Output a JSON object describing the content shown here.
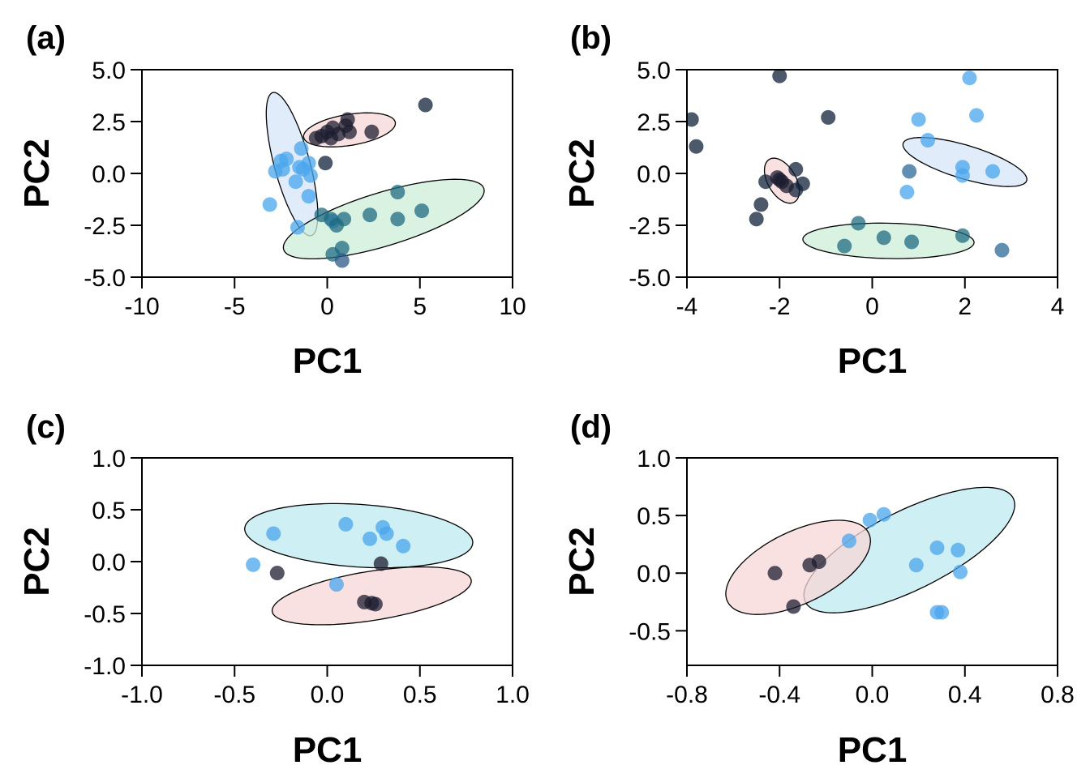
{
  "chart_data": [
    {
      "panel": "(a)",
      "type": "scatter",
      "xlabel": "PC1",
      "ylabel": "PC2",
      "xlim": [
        -10,
        10
      ],
      "ylim": [
        -5,
        5
      ],
      "xticks": [
        "-10",
        "-5",
        "0",
        "5",
        "10"
      ],
      "yticks": [
        "5.0",
        "2.5",
        "0.0",
        "-2.5",
        "-5.0"
      ],
      "ellipses": [
        {
          "cx": 1.2,
          "cy": 2.1,
          "rx": 2.5,
          "ry": 0.75,
          "angle": 8,
          "fill": "#f8d7d7"
        },
        {
          "cx": -1.9,
          "cy": 0.45,
          "rx": 3.6,
          "ry": 0.95,
          "angle": -73,
          "fill": "#d6e6f8"
        },
        {
          "cx": 3.05,
          "cy": -2.2,
          "rx": 5.6,
          "ry": 1.3,
          "angle": 15,
          "fill": "#cdeed8"
        }
      ],
      "points": [
        {
          "x": -0.6,
          "y": 1.7,
          "c": "#1c1c30"
        },
        {
          "x": -0.3,
          "y": 1.8,
          "c": "#1c1c30"
        },
        {
          "x": 0.0,
          "y": 2.0,
          "c": "#1c1c30"
        },
        {
          "x": 0.3,
          "y": 2.2,
          "c": "#1c1c30"
        },
        {
          "x": 0.6,
          "y": 1.9,
          "c": "#1c1c30"
        },
        {
          "x": 1.0,
          "y": 2.3,
          "c": "#1c1c30"
        },
        {
          "x": 1.1,
          "y": 2.6,
          "c": "#1c1c30"
        },
        {
          "x": 1.2,
          "y": 2.0,
          "c": "#1c1c30"
        },
        {
          "x": 2.4,
          "y": 2.0,
          "c": "#1c1c30"
        },
        {
          "x": 0.2,
          "y": 1.7,
          "c": "#1c1c30"
        },
        {
          "x": 5.3,
          "y": 3.3,
          "c": "#0f2238"
        },
        {
          "x": -0.1,
          "y": 0.5,
          "c": "#0f2238"
        },
        {
          "x": -2.5,
          "y": 0.6,
          "c": "#4aa6ec"
        },
        {
          "x": -2.2,
          "y": 0.7,
          "c": "#4aa6ec"
        },
        {
          "x": -1.4,
          "y": 1.2,
          "c": "#4aa6ec"
        },
        {
          "x": -1.0,
          "y": 0.5,
          "c": "#4aa6ec"
        },
        {
          "x": -2.8,
          "y": 0.1,
          "c": "#4aa6ec"
        },
        {
          "x": -2.4,
          "y": 0.2,
          "c": "#4aa6ec"
        },
        {
          "x": -1.5,
          "y": 0.3,
          "c": "#4aa6ec"
        },
        {
          "x": -1.3,
          "y": 0.2,
          "c": "#4aa6ec"
        },
        {
          "x": -0.9,
          "y": -0.1,
          "c": "#4aa6ec"
        },
        {
          "x": -1.7,
          "y": -0.4,
          "c": "#4aa6ec"
        },
        {
          "x": -1.0,
          "y": -1.1,
          "c": "#4aa6ec"
        },
        {
          "x": -3.1,
          "y": -1.5,
          "c": "#4aa6ec"
        },
        {
          "x": -1.6,
          "y": -2.6,
          "c": "#4aa6ec"
        },
        {
          "x": 0.3,
          "y": -2.3,
          "c": "#4aa6ec"
        },
        {
          "x": -0.3,
          "y": -2.0,
          "c": "#1f6b80"
        },
        {
          "x": 0.2,
          "y": -2.2,
          "c": "#1f6b80"
        },
        {
          "x": 0.5,
          "y": -2.5,
          "c": "#1f6b80"
        },
        {
          "x": 0.9,
          "y": -2.2,
          "c": "#1f6b80"
        },
        {
          "x": 2.3,
          "y": -2.0,
          "c": "#1f6b80"
        },
        {
          "x": 3.8,
          "y": -2.2,
          "c": "#1f6b80"
        },
        {
          "x": 5.1,
          "y": -1.8,
          "c": "#1f6b80"
        },
        {
          "x": 3.8,
          "y": -0.9,
          "c": "#1f6b80"
        },
        {
          "x": 0.8,
          "y": -3.6,
          "c": "#1f6b80"
        },
        {
          "x": 0.3,
          "y": -3.9,
          "c": "#1f6b80"
        },
        {
          "x": 0.8,
          "y": -4.2,
          "c": "#2c5a88"
        }
      ]
    },
    {
      "panel": "(b)",
      "type": "scatter",
      "xlabel": "PC1",
      "ylabel": "PC2",
      "xlim": [
        -4,
        4
      ],
      "ylim": [
        -5,
        5
      ],
      "xticks": [
        "-4",
        "-2",
        "0",
        "2",
        "4"
      ],
      "yticks": [
        "5.0",
        "2.5",
        "0.0",
        "-2.5",
        "-5.0"
      ],
      "ellipses": [
        {
          "cx": -1.95,
          "cy": -0.35,
          "rx": 1.1,
          "ry": 0.33,
          "angle": -80,
          "fill": "#f8d7d7"
        },
        {
          "cx": 2.0,
          "cy": 0.55,
          "rx": 1.65,
          "ry": 0.68,
          "angle": -40,
          "fill": "#d6e6f8"
        },
        {
          "cx": 0.35,
          "cy": -3.25,
          "rx": 1.85,
          "ry": 0.85,
          "angle": -3,
          "fill": "#cdeed8"
        }
      ],
      "points": [
        {
          "x": -2.0,
          "y": 4.7,
          "c": "#0f2238"
        },
        {
          "x": -3.9,
          "y": 2.6,
          "c": "#0f2238"
        },
        {
          "x": -3.8,
          "y": 1.3,
          "c": "#0f2238"
        },
        {
          "x": -0.95,
          "y": 2.7,
          "c": "#0f2238"
        },
        {
          "x": -2.3,
          "y": -0.4,
          "c": "#0f2238"
        },
        {
          "x": -2.5,
          "y": -2.2,
          "c": "#0f2238"
        },
        {
          "x": -2.4,
          "y": -1.5,
          "c": "#0f2238"
        },
        {
          "x": -1.5,
          "y": -0.5,
          "c": "#0f2238"
        },
        {
          "x": -1.65,
          "y": 0.2,
          "c": "#0f2238"
        },
        {
          "x": -1.65,
          "y": -0.8,
          "c": "#0f2238"
        },
        {
          "x": -2.05,
          "y": -0.2,
          "c": "#1c1c30"
        },
        {
          "x": -1.95,
          "y": -0.4,
          "c": "#1c1c30"
        },
        {
          "x": -1.85,
          "y": -0.6,
          "c": "#1c1c30"
        },
        {
          "x": -2.0,
          "y": -0.3,
          "c": "#1c1c30"
        },
        {
          "x": 2.1,
          "y": 4.6,
          "c": "#4aa6ec"
        },
        {
          "x": 2.25,
          "y": 2.8,
          "c": "#4aa6ec"
        },
        {
          "x": 1.0,
          "y": 2.6,
          "c": "#4aa6ec"
        },
        {
          "x": 1.2,
          "y": 1.6,
          "c": "#4aa6ec"
        },
        {
          "x": 1.95,
          "y": 0.3,
          "c": "#4aa6ec"
        },
        {
          "x": 1.95,
          "y": -0.1,
          "c": "#4aa6ec"
        },
        {
          "x": 2.6,
          "y": 0.1,
          "c": "#4aa6ec"
        },
        {
          "x": 0.75,
          "y": -0.9,
          "c": "#4aa6ec"
        },
        {
          "x": 0.8,
          "y": 0.1,
          "c": "#2c6a98"
        },
        {
          "x": 2.8,
          "y": -3.7,
          "c": "#2c6a98"
        },
        {
          "x": -0.3,
          "y": -2.4,
          "c": "#1f6b80"
        },
        {
          "x": -0.6,
          "y": -3.5,
          "c": "#1f6b80"
        },
        {
          "x": 0.25,
          "y": -3.1,
          "c": "#1f6b80"
        },
        {
          "x": 0.85,
          "y": -3.3,
          "c": "#1f6b80"
        },
        {
          "x": 1.95,
          "y": -3.0,
          "c": "#1f6b80"
        }
      ]
    },
    {
      "panel": "(c)",
      "type": "scatter",
      "xlabel": "PC1",
      "ylabel": "PC2",
      "xlim": [
        -1.0,
        1.0
      ],
      "ylim": [
        -1.0,
        1.0
      ],
      "xticks": [
        "-1.0",
        "-0.5",
        "0.0",
        "0.5",
        "1.0"
      ],
      "yticks": [
        "1.0",
        "0.5",
        "0.0",
        "-0.5",
        "-1.0"
      ],
      "ellipses": [
        {
          "cx": 0.17,
          "cy": 0.25,
          "rx": 0.62,
          "ry": 0.3,
          "angle": -8,
          "fill": "#bdeaef"
        },
        {
          "cx": 0.24,
          "cy": -0.33,
          "rx": 0.56,
          "ry": 0.23,
          "angle": 18,
          "fill": "#f8d7d7"
        }
      ],
      "points": [
        {
          "x": -0.29,
          "y": 0.27,
          "c": "#4aa6ec"
        },
        {
          "x": -0.4,
          "y": -0.03,
          "c": "#4aa6ec"
        },
        {
          "x": 0.1,
          "y": 0.36,
          "c": "#4aa6ec"
        },
        {
          "x": 0.23,
          "y": 0.22,
          "c": "#4aa6ec"
        },
        {
          "x": 0.3,
          "y": 0.33,
          "c": "#4aa6ec"
        },
        {
          "x": 0.32,
          "y": 0.27,
          "c": "#4aa6ec"
        },
        {
          "x": 0.41,
          "y": 0.15,
          "c": "#4aa6ec"
        },
        {
          "x": 0.05,
          "y": -0.22,
          "c": "#4aa6ec"
        },
        {
          "x": -0.27,
          "y": -0.11,
          "c": "#1c1c30"
        },
        {
          "x": 0.29,
          "y": -0.02,
          "c": "#1c1c30"
        },
        {
          "x": 0.2,
          "y": -0.39,
          "c": "#1c1c30"
        },
        {
          "x": 0.24,
          "y": -0.4,
          "c": "#1c1c30"
        },
        {
          "x": 0.26,
          "y": -0.41,
          "c": "#1c1c30"
        }
      ]
    },
    {
      "panel": "(d)",
      "type": "scatter",
      "xlabel": "PC1",
      "ylabel": "PC2",
      "xlim": [
        -0.8,
        0.8
      ],
      "ylim": [
        -0.8,
        1.0
      ],
      "xticks": [
        "-0.8",
        "-0.4",
        "0.0",
        "0.4",
        "0.8"
      ],
      "yticks": [
        "1.0",
        "0.5",
        "0.0",
        "-0.5"
      ],
      "ellipses": [
        {
          "cx": 0.16,
          "cy": 0.2,
          "rx": 0.66,
          "ry": 0.26,
          "angle": 52,
          "fill": "#bdeaef"
        },
        {
          "cx": -0.32,
          "cy": 0.05,
          "rx": 0.46,
          "ry": 0.23,
          "angle": 58,
          "fill": "#f8d7d7"
        }
      ],
      "points": [
        {
          "x": -0.42,
          "y": 0.0,
          "c": "#1c1c30"
        },
        {
          "x": -0.27,
          "y": 0.07,
          "c": "#1c1c30"
        },
        {
          "x": -0.23,
          "y": 0.1,
          "c": "#1c1c30"
        },
        {
          "x": -0.34,
          "y": -0.29,
          "c": "#1c1c30"
        },
        {
          "x": -0.1,
          "y": 0.28,
          "c": "#4aa6ec"
        },
        {
          "x": -0.01,
          "y": 0.46,
          "c": "#4aa6ec"
        },
        {
          "x": 0.05,
          "y": 0.51,
          "c": "#4aa6ec"
        },
        {
          "x": 0.19,
          "y": 0.07,
          "c": "#4aa6ec"
        },
        {
          "x": 0.28,
          "y": 0.22,
          "c": "#4aa6ec"
        },
        {
          "x": 0.37,
          "y": 0.2,
          "c": "#4aa6ec"
        },
        {
          "x": 0.38,
          "y": 0.01,
          "c": "#4aa6ec"
        },
        {
          "x": 0.28,
          "y": -0.34,
          "c": "#4aa6ec"
        },
        {
          "x": 0.3,
          "y": -0.34,
          "c": "#4aa6ec"
        }
      ]
    }
  ]
}
